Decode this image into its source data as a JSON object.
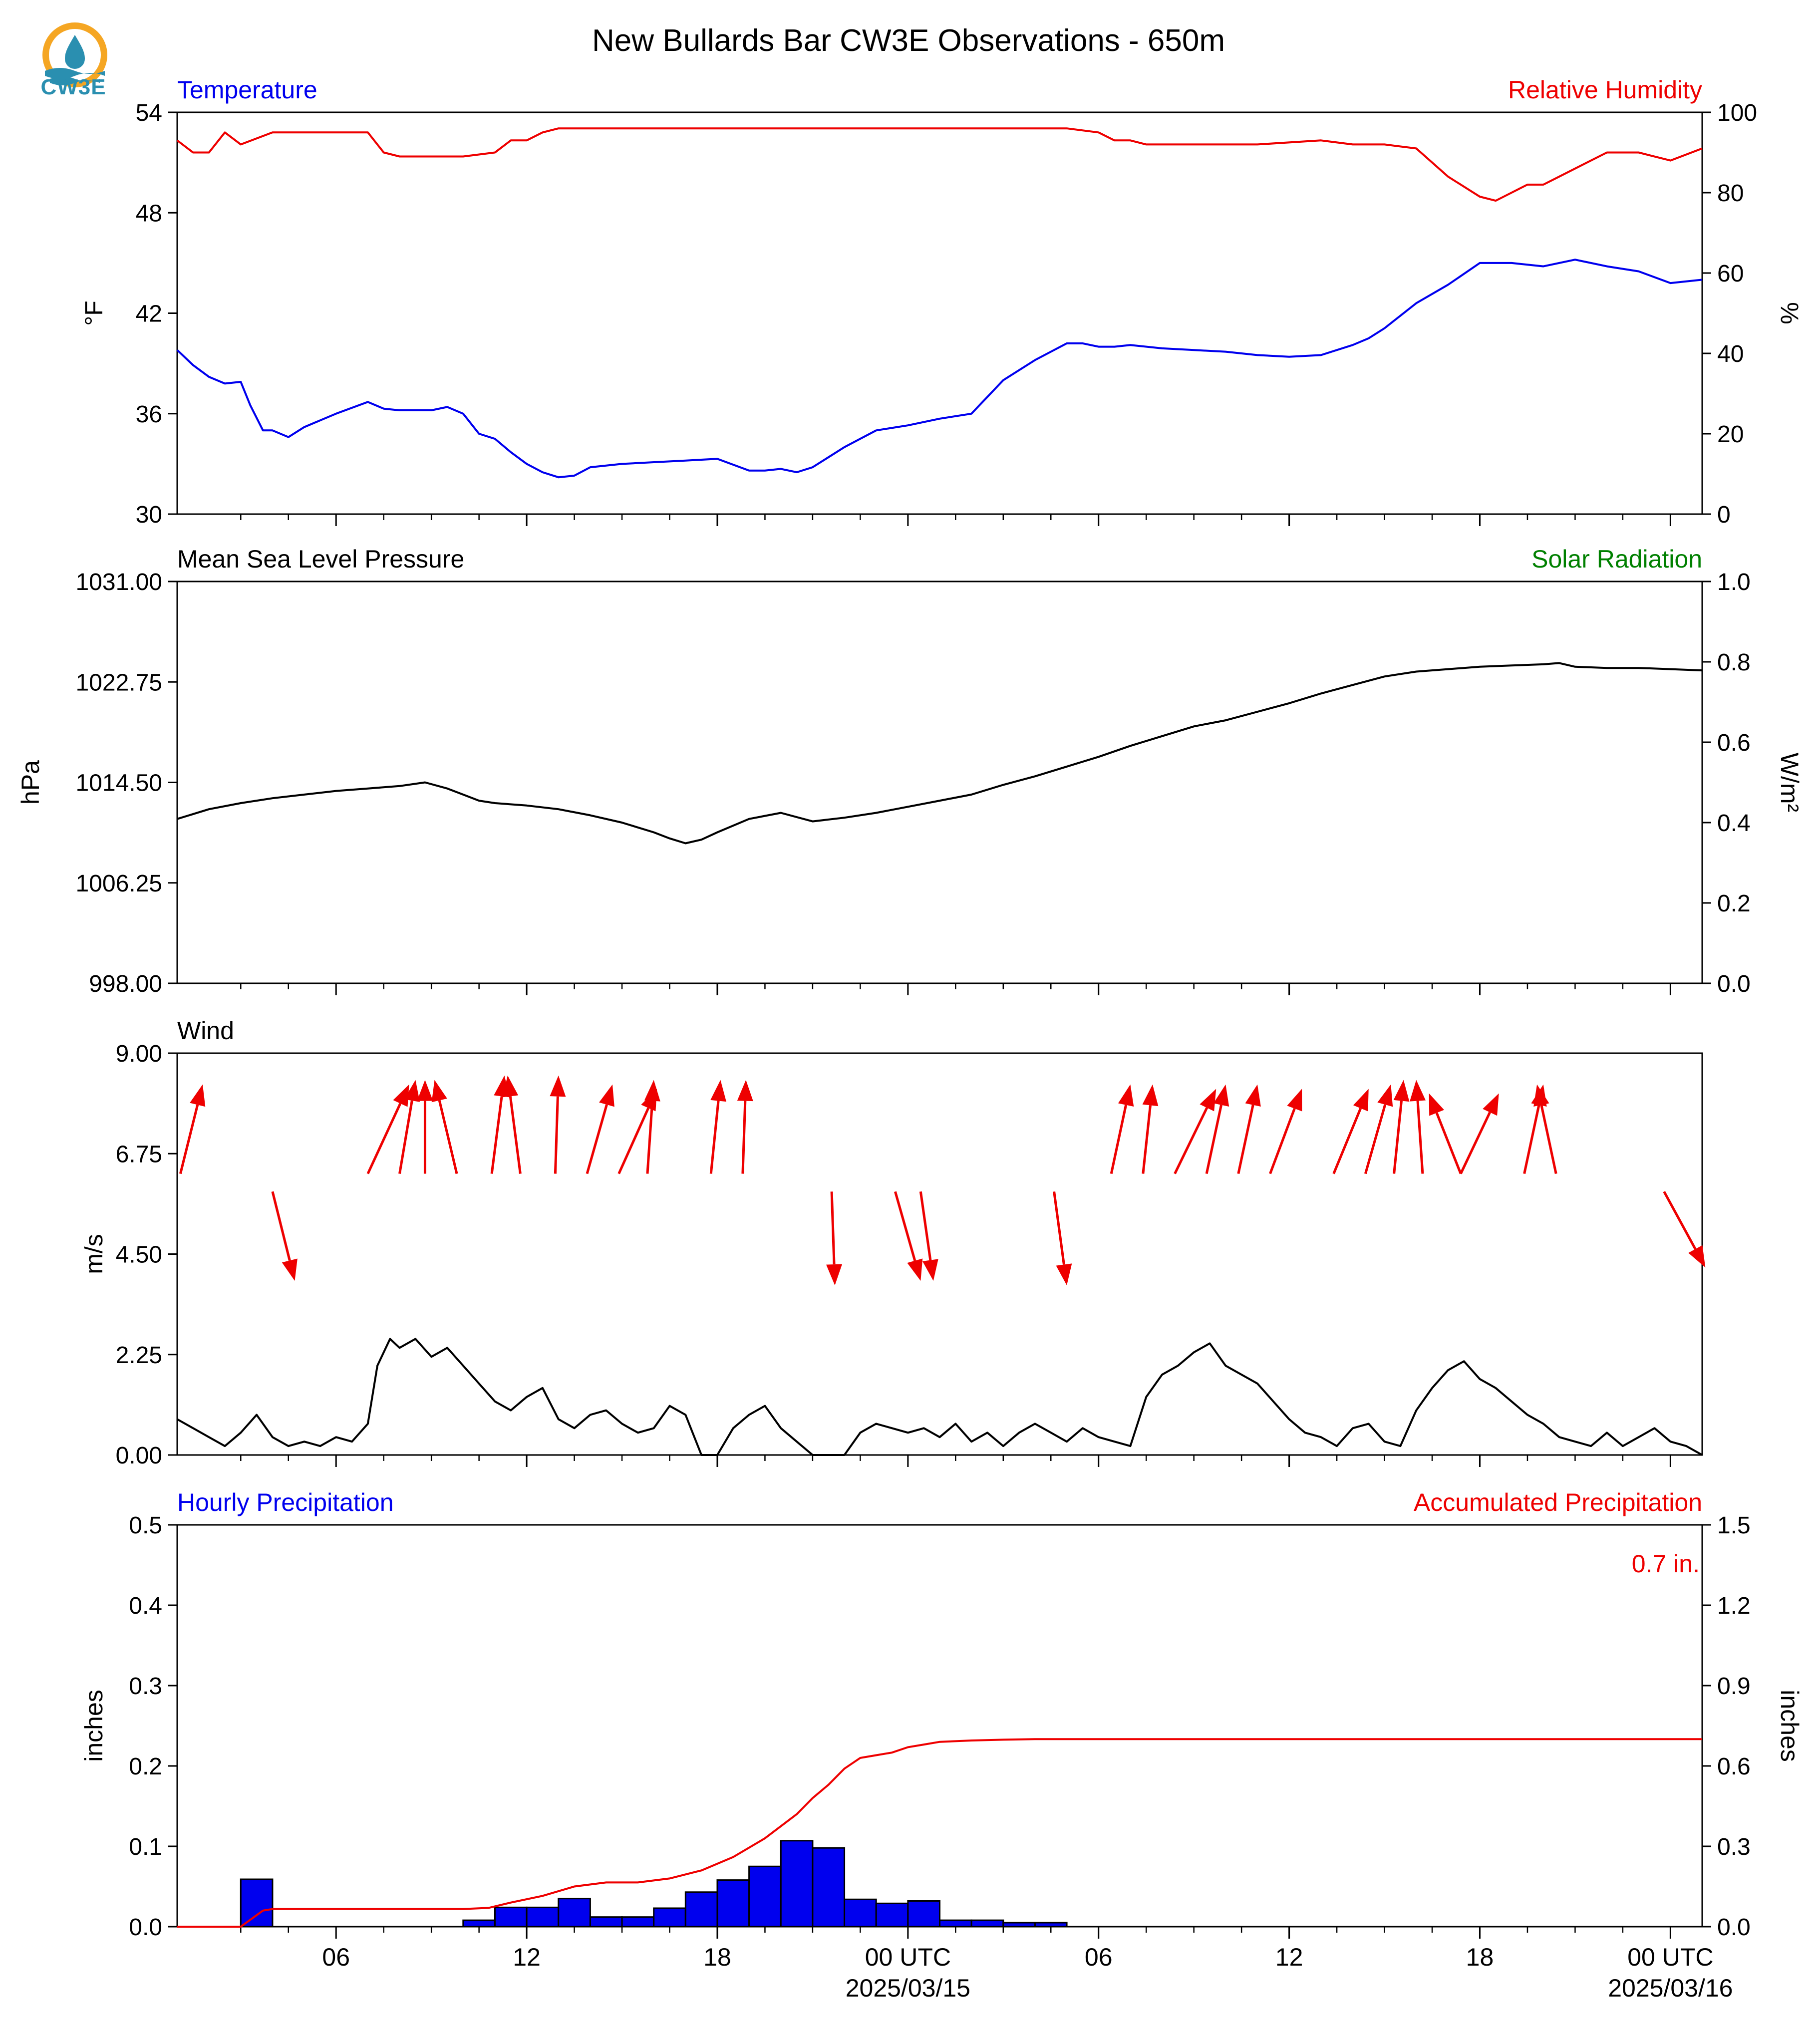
{
  "title": "New Bullards Bar CW3E Observations - 650m",
  "logo": {
    "text": "CW3E",
    "icon": "cw3e-water-drop-logo",
    "accent_orange": "#f5a623",
    "accent_blue": "#2a8fb0"
  },
  "x_axis": {
    "unit": "hours since 2025-03-14 01 UTC",
    "range_hours": [
      0,
      48
    ],
    "ticks": [
      {
        "h": 5,
        "label": "06"
      },
      {
        "h": 11,
        "label": "12"
      },
      {
        "h": 17,
        "label": "18"
      },
      {
        "h": 23,
        "label": "00 UTC",
        "sublabel": "2025/03/15"
      },
      {
        "h": 29,
        "label": "06"
      },
      {
        "h": 35,
        "label": "12"
      },
      {
        "h": 41,
        "label": "18"
      },
      {
        "h": 47,
        "label": "00 UTC",
        "sublabel": "2025/03/16"
      }
    ]
  },
  "colors": {
    "blue": "#0000ee",
    "red": "#ee0000",
    "green": "#008000",
    "black": "#000000"
  },
  "chart_data": [
    {
      "type": "line",
      "left_title": "Temperature",
      "right_title": "Relative Humidity",
      "ylabel": "°F",
      "ylabel_right": "%",
      "ylim": [
        30,
        54
      ],
      "yticks": [
        "30",
        "36",
        "42",
        "48",
        "54"
      ],
      "ylim_right": [
        0,
        100
      ],
      "yticks_right": [
        "0",
        "20",
        "40",
        "60",
        "80",
        "100"
      ],
      "series": [
        {
          "axis": "left",
          "color": "#0000ee",
          "x": [
            0,
            0.5,
            1,
            1.5,
            2,
            2.3,
            2.7,
            3,
            3.5,
            4,
            4.5,
            5,
            6,
            6.5,
            7,
            8,
            8.5,
            9,
            9.5,
            10,
            10.5,
            11,
            11.5,
            12,
            12.5,
            13,
            13.5,
            14,
            15,
            16,
            17,
            18,
            18.5,
            19,
            19.5,
            20,
            20.5,
            21,
            22,
            23,
            24,
            25,
            26,
            27,
            28,
            28.5,
            29,
            29.5,
            30,
            31,
            32,
            33,
            34,
            35,
            36,
            37,
            37.5,
            38,
            39,
            40,
            41,
            42,
            43,
            44,
            45,
            46,
            47,
            48
          ],
          "values": [
            39.8,
            38.9,
            38.2,
            37.8,
            37.9,
            36.5,
            35.0,
            35.0,
            34.6,
            35.2,
            35.6,
            36.0,
            36.7,
            36.3,
            36.2,
            36.2,
            36.4,
            36.0,
            34.8,
            34.5,
            33.7,
            33.0,
            32.5,
            32.2,
            32.3,
            32.8,
            32.9,
            33.0,
            33.1,
            33.2,
            33.3,
            32.6,
            32.6,
            32.7,
            32.5,
            32.8,
            33.4,
            34.0,
            35.0,
            35.3,
            35.7,
            36.0,
            38.0,
            39.2,
            40.2,
            40.2,
            40.0,
            40.0,
            40.1,
            39.9,
            39.8,
            39.7,
            39.5,
            39.4,
            39.5,
            40.1,
            40.5,
            41.1,
            42.6,
            43.7,
            45.0,
            45.0,
            44.8,
            45.2,
            44.8,
            44.5,
            43.8,
            44.0
          ]
        },
        {
          "axis": "right",
          "color": "#ee0000",
          "x": [
            0,
            0.5,
            1,
            1.5,
            2,
            3,
            4,
            5,
            6,
            6.5,
            7,
            7.5,
            8,
            9,
            10,
            10.5,
            11,
            11.5,
            12,
            14,
            16,
            18,
            20,
            22,
            24,
            26,
            28,
            29,
            29.5,
            30,
            30.5,
            31,
            32,
            34,
            36,
            37,
            38,
            39,
            40,
            41,
            41.5,
            42,
            42.5,
            43,
            43.5,
            44,
            45,
            46,
            47,
            48
          ],
          "values": [
            93,
            90,
            90,
            95,
            92,
            95,
            95,
            95,
            95,
            90,
            89,
            89,
            89,
            89,
            90,
            93,
            93,
            95,
            96,
            96,
            96,
            96,
            96,
            96,
            96,
            96,
            96,
            95,
            93,
            93,
            92,
            92,
            92,
            92,
            93,
            92,
            92,
            91,
            84,
            79,
            78,
            80,
            82,
            82,
            84,
            86,
            90,
            90,
            88,
            91
          ]
        }
      ]
    },
    {
      "type": "line",
      "left_title": "Mean Sea Level Pressure",
      "right_title": "Solar Radiation",
      "ylabel": "hPa",
      "ylabel_right": "W/m²",
      "ylim": [
        998.0,
        1031.0
      ],
      "yticks": [
        "998.00",
        "1006.25",
        "1014.50",
        "1022.75",
        "1031.00"
      ],
      "ylim_right": [
        0.0,
        1.0
      ],
      "yticks_right": [
        "0.0",
        "0.2",
        "0.4",
        "0.6",
        "0.8",
        "1.0"
      ],
      "series": [
        {
          "axis": "left",
          "color": "#000000",
          "x": [
            0,
            1,
            2,
            3,
            4,
            5,
            6,
            7,
            7.8,
            8.5,
            9,
            9.5,
            10,
            11,
            12,
            13,
            14,
            15,
            15.5,
            16,
            16.5,
            17,
            18,
            19,
            20,
            21,
            22,
            23,
            24,
            25,
            26,
            27,
            28,
            29,
            30,
            31,
            32,
            33,
            34,
            35,
            36,
            37,
            38,
            39,
            40,
            41,
            42,
            43,
            43.5,
            44,
            45,
            46,
            47,
            48
          ],
          "values": [
            1011.5,
            1012.3,
            1012.8,
            1013.2,
            1013.5,
            1013.8,
            1014.0,
            1014.2,
            1014.5,
            1014.0,
            1013.5,
            1013.0,
            1012.8,
            1012.6,
            1012.3,
            1011.8,
            1011.2,
            1010.4,
            1009.9,
            1009.5,
            1009.8,
            1010.4,
            1011.5,
            1012.0,
            1011.3,
            1011.6,
            1012.0,
            1012.5,
            1013.0,
            1013.5,
            1014.3,
            1015.0,
            1015.8,
            1016.6,
            1017.5,
            1018.3,
            1019.1,
            1019.6,
            1020.3,
            1021.0,
            1021.8,
            1022.5,
            1023.2,
            1023.6,
            1023.8,
            1024.0,
            1024.1,
            1024.2,
            1024.3,
            1024.0,
            1023.9,
            1023.9,
            1023.8,
            1023.7
          ]
        }
      ]
    },
    {
      "type": "line",
      "left_title": "Wind",
      "ylabel": "m/s",
      "ylim": [
        0.0,
        9.0
      ],
      "yticks": [
        "0.00",
        "2.25",
        "4.50",
        "6.75",
        "9.00"
      ],
      "series": [
        {
          "name": "wind speed",
          "axis": "left",
          "color": "#000000",
          "x": [
            0,
            0.5,
            1,
            1.5,
            2,
            2.5,
            3,
            3.5,
            4,
            4.5,
            5,
            5.5,
            6,
            6.3,
            6.7,
            7,
            7.5,
            8,
            8.5,
            9,
            9.5,
            10,
            10.5,
            11,
            11.5,
            12,
            12.5,
            13,
            13.5,
            14,
            14.5,
            15,
            15.5,
            16,
            16.5,
            17,
            17.5,
            18,
            18.5,
            19,
            19.5,
            20,
            20.5,
            21,
            21.5,
            22,
            22.5,
            23,
            23.5,
            24,
            24.5,
            25,
            25.5,
            26,
            26.5,
            27,
            27.5,
            28,
            28.5,
            29,
            29.5,
            30,
            30.5,
            31,
            31.5,
            32,
            32.5,
            33,
            33.5,
            34,
            34.5,
            35,
            35.5,
            36,
            36.5,
            37,
            37.5,
            38,
            38.5,
            39,
            39.5,
            40,
            40.5,
            41,
            41.5,
            42,
            42.5,
            43,
            43.5,
            44,
            44.5,
            45,
            45.5,
            46,
            46.5,
            47,
            47.5,
            48
          ],
          "values": [
            0.8,
            0.6,
            0.4,
            0.2,
            0.5,
            0.9,
            0.4,
            0.2,
            0.3,
            0.2,
            0.4,
            0.3,
            0.7,
            2.0,
            2.6,
            2.4,
            2.6,
            2.2,
            2.4,
            2.0,
            1.6,
            1.2,
            1.0,
            1.3,
            1.5,
            0.8,
            0.6,
            0.9,
            1.0,
            0.7,
            0.5,
            0.6,
            1.1,
            0.9,
            0.0,
            0.0,
            0.6,
            0.9,
            1.1,
            0.6,
            0.3,
            0.0,
            0.0,
            0.0,
            0.5,
            0.7,
            0.6,
            0.5,
            0.6,
            0.4,
            0.7,
            0.3,
            0.5,
            0.2,
            0.5,
            0.7,
            0.5,
            0.3,
            0.6,
            0.4,
            0.3,
            0.2,
            1.3,
            1.8,
            2.0,
            2.3,
            2.5,
            2.0,
            1.8,
            1.6,
            1.2,
            0.8,
            0.5,
            0.4,
            0.2,
            0.6,
            0.7,
            0.3,
            0.2,
            1.0,
            1.5,
            1.9,
            2.1,
            1.7,
            1.5,
            1.2,
            0.9,
            0.7,
            0.4,
            0.3,
            0.2,
            0.5,
            0.2,
            0.4,
            0.6,
            0.3,
            0.2,
            0.0
          ]
        }
      ],
      "direction_arrows": {
        "color": "#ee0000",
        "note": "arrow tails (x in hours, y in m/s) and vector components in plot units",
        "items": [
          {
            "x": 0.1,
            "y": 6.3,
            "dx": 0.7,
            "dy": 2.0
          },
          {
            "x": 3.0,
            "y": 5.9,
            "dx": 0.7,
            "dy": -2.0
          },
          {
            "x": 6.0,
            "y": 6.3,
            "dx": 1.3,
            "dy": 2.0
          },
          {
            "x": 7.0,
            "y": 6.3,
            "dx": 0.5,
            "dy": 2.1
          },
          {
            "x": 7.8,
            "y": 6.3,
            "dx": 0.0,
            "dy": 2.1
          },
          {
            "x": 8.8,
            "y": 6.3,
            "dx": -0.7,
            "dy": 2.1
          },
          {
            "x": 9.9,
            "y": 6.3,
            "dx": 0.4,
            "dy": 2.2
          },
          {
            "x": 10.8,
            "y": 6.3,
            "dx": -0.4,
            "dy": 2.2
          },
          {
            "x": 11.9,
            "y": 6.3,
            "dx": 0.1,
            "dy": 2.2
          },
          {
            "x": 12.9,
            "y": 6.3,
            "dx": 0.8,
            "dy": 2.0
          },
          {
            "x": 13.9,
            "y": 6.3,
            "dx": 1.2,
            "dy": 1.9
          },
          {
            "x": 14.8,
            "y": 6.3,
            "dx": 0.2,
            "dy": 2.1
          },
          {
            "x": 16.8,
            "y": 6.3,
            "dx": 0.3,
            "dy": 2.1
          },
          {
            "x": 17.8,
            "y": 6.3,
            "dx": 0.1,
            "dy": 2.1
          },
          {
            "x": 20.6,
            "y": 5.9,
            "dx": 0.1,
            "dy": -2.1
          },
          {
            "x": 22.6,
            "y": 5.9,
            "dx": 0.8,
            "dy": -2.0
          },
          {
            "x": 23.4,
            "y": 5.9,
            "dx": 0.4,
            "dy": -2.0
          },
          {
            "x": 27.6,
            "y": 5.9,
            "dx": 0.4,
            "dy": -2.1
          },
          {
            "x": 29.4,
            "y": 6.3,
            "dx": 0.6,
            "dy": 2.0
          },
          {
            "x": 30.4,
            "y": 6.3,
            "dx": 0.3,
            "dy": 2.0
          },
          {
            "x": 31.4,
            "y": 6.3,
            "dx": 1.3,
            "dy": 1.9
          },
          {
            "x": 32.4,
            "y": 6.3,
            "dx": 0.6,
            "dy": 2.0
          },
          {
            "x": 33.4,
            "y": 6.3,
            "dx": 0.6,
            "dy": 2.0
          },
          {
            "x": 34.4,
            "y": 6.3,
            "dx": 1.0,
            "dy": 1.9
          },
          {
            "x": 36.4,
            "y": 6.3,
            "dx": 1.1,
            "dy": 1.9
          },
          {
            "x": 37.4,
            "y": 6.3,
            "dx": 0.8,
            "dy": 2.0
          },
          {
            "x": 38.3,
            "y": 6.3,
            "dx": 0.3,
            "dy": 2.1
          },
          {
            "x": 39.2,
            "y": 6.3,
            "dx": -0.2,
            "dy": 2.1
          },
          {
            "x": 40.4,
            "y": 6.3,
            "dx": -1.0,
            "dy": 1.8
          },
          {
            "x": 40.4,
            "y": 6.3,
            "dx": 1.2,
            "dy": 1.8
          },
          {
            "x": 42.4,
            "y": 6.3,
            "dx": 0.6,
            "dy": 2.0
          },
          {
            "x": 43.4,
            "y": 6.3,
            "dx": -0.6,
            "dy": 2.0
          },
          {
            "x": 46.8,
            "y": 5.9,
            "dx": 1.3,
            "dy": -1.7
          }
        ]
      }
    },
    {
      "type": "bar",
      "left_title": "Hourly Precipitation",
      "right_title": "Accumulated Precipitation",
      "annotation": "0.7 in.",
      "ylabel": "inches",
      "ylabel_right": "inches",
      "ylim": [
        0.0,
        0.5
      ],
      "yticks": [
        "0.0",
        "0.1",
        "0.2",
        "0.3",
        "0.4",
        "0.5"
      ],
      "ylim_right": [
        0.0,
        1.5
      ],
      "yticks_right": [
        "0.0",
        "0.3",
        "0.6",
        "0.9",
        "1.2",
        "1.5"
      ],
      "bars": {
        "color": "#0000ee",
        "x_hour_start": [
          2,
          9,
          10,
          11,
          12,
          13,
          14,
          15,
          16,
          17,
          18,
          19,
          20,
          21,
          22,
          23,
          24,
          25,
          26,
          27
        ],
        "values": [
          0.059,
          0.008,
          0.024,
          0.024,
          0.035,
          0.012,
          0.012,
          0.023,
          0.043,
          0.058,
          0.075,
          0.107,
          0.098,
          0.034,
          0.029,
          0.032,
          0.008,
          0.008,
          0.005,
          0.005
        ]
      },
      "accumulated": {
        "axis": "right",
        "color": "#ee0000",
        "x": [
          0,
          2,
          2.7,
          3,
          6,
          9,
          9.8,
          10.5,
          11.5,
          12.5,
          13.5,
          14.5,
          15.5,
          16.5,
          17.5,
          18.5,
          19.5,
          20,
          20.5,
          21,
          21.5,
          22,
          22.5,
          23,
          23.5,
          24,
          25,
          26,
          27,
          28,
          29,
          48
        ],
        "values": [
          0.0,
          0.0,
          0.06,
          0.066,
          0.066,
          0.066,
          0.07,
          0.09,
          0.115,
          0.15,
          0.165,
          0.165,
          0.18,
          0.21,
          0.26,
          0.33,
          0.42,
          0.48,
          0.53,
          0.59,
          0.63,
          0.64,
          0.65,
          0.67,
          0.68,
          0.69,
          0.695,
          0.698,
          0.7,
          0.7,
          0.7,
          0.7
        ]
      }
    }
  ]
}
